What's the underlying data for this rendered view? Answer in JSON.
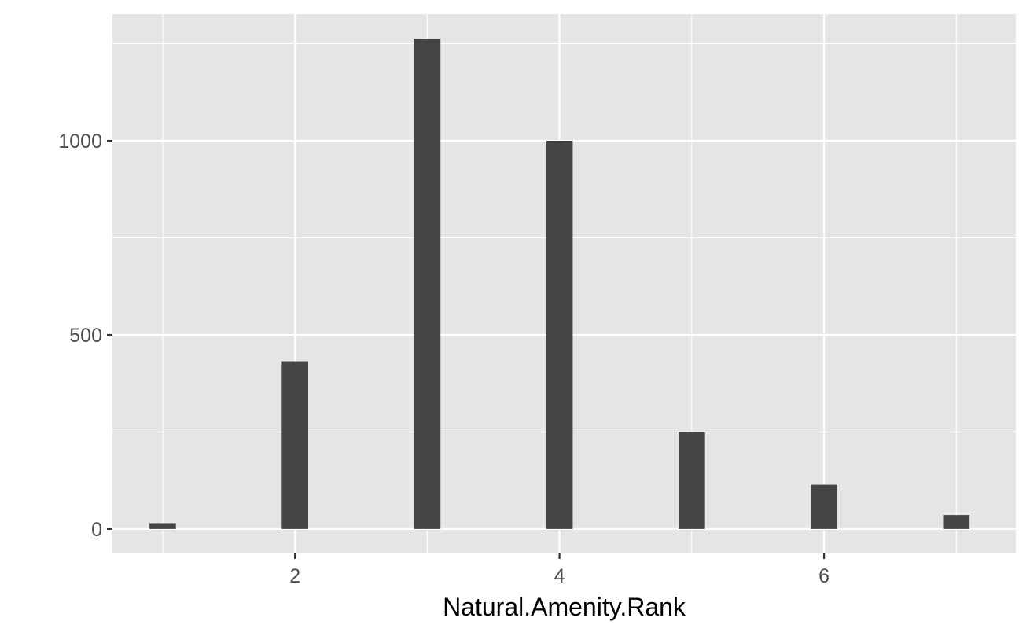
{
  "chart_data": {
    "type": "bar",
    "title": "",
    "xlabel": "Natural.Amenity.Rank",
    "ylabel": "",
    "x": [
      1,
      2,
      3,
      4,
      5,
      6,
      7
    ],
    "values": [
      15,
      432,
      1263,
      1000,
      249,
      114,
      36
    ],
    "xlim": [
      0.62,
      7.45
    ],
    "ylim": [
      -63,
      1326
    ],
    "x_ticks": [
      2,
      4,
      6
    ],
    "y_ticks": [
      0,
      500,
      1000
    ],
    "x_tick_labels": [
      "2",
      "4",
      "6"
    ],
    "y_tick_labels": [
      "0",
      "500",
      "1000"
    ],
    "x_minor_ticks": [
      1,
      3,
      5,
      7
    ],
    "y_minor_ticks": [
      250,
      750,
      1250
    ],
    "bar_width": 0.2,
    "grid": true,
    "legend": "none",
    "colors": {
      "panel": "#e5e5e5",
      "grid": "#ffffff",
      "bar": "#454545",
      "tick_label": "#4d4d4d",
      "axis_title": "#000000"
    }
  }
}
